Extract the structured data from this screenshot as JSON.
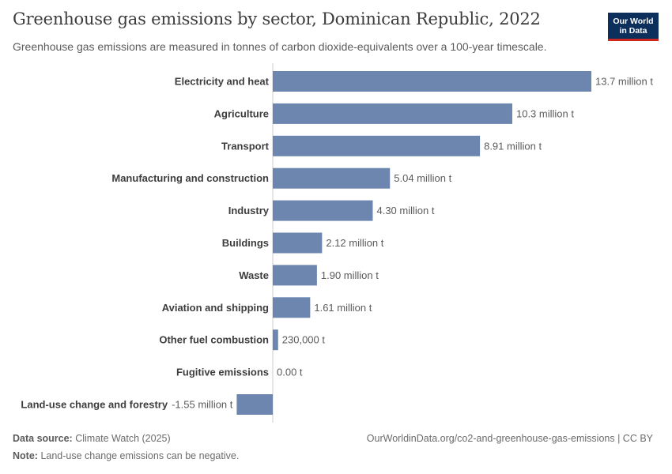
{
  "header": {
    "title": "Greenhouse gas emissions by sector, Dominican Republic, 2022",
    "subtitle": "Greenhouse gas emissions are measured in tonnes of carbon dioxide-equivalents over a 100-year timescale.",
    "logo_line1": "Our World",
    "logo_line2": "in Data"
  },
  "footer": {
    "source_label": "Data source:",
    "source_value": "Climate Watch (2025)",
    "note_label": "Note:",
    "note_value": "Land-use change emissions can be negative.",
    "url_text": "OurWorldinData.org/co2-and-greenhouse-gas-emissions | CC BY"
  },
  "colors": {
    "bar": "#6d86b0",
    "label": "#3d3d3d",
    "value": "#5b5b5b",
    "axis": "#cccccc"
  },
  "chart_data": {
    "type": "bar",
    "orientation": "horizontal",
    "title": "Greenhouse gas emissions by sector, Dominican Republic, 2022",
    "unit": "tonnes of CO2-equivalents",
    "categories": [
      "Electricity and heat",
      "Agriculture",
      "Transport",
      "Manufacturing and construction",
      "Industry",
      "Buildings",
      "Waste",
      "Aviation and shipping",
      "Other fuel combustion",
      "Fugitive emissions",
      "Land-use change and forestry"
    ],
    "values": [
      13700000,
      10300000,
      8910000,
      5040000,
      4300000,
      2120000,
      1900000,
      1610000,
      230000,
      0,
      -1550000
    ],
    "value_labels": [
      "13.7 million t",
      "10.3 million t",
      "8.91 million t",
      "5.04 million t",
      "4.30 million t",
      "2.12 million t",
      "1.90 million t",
      "1.61 million t",
      "230,000 t",
      "0.00 t",
      "-1.55 million t"
    ],
    "xlim": [
      -1550000,
      13700000
    ]
  }
}
